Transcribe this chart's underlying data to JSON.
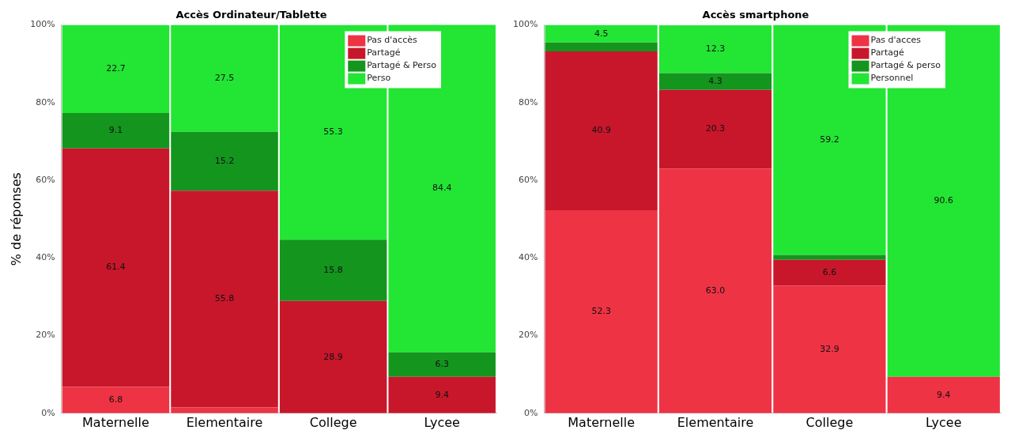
{
  "chart_data": [
    {
      "type": "bar",
      "title": "Accès Ordinateur/Tablette",
      "ylabel": "% de réponses",
      "categories": [
        "Maternelle",
        "Elementaire",
        "College",
        "Lycee"
      ],
      "stacked": true,
      "ylim": [
        0,
        100
      ],
      "yticks": [
        {
          "value": 0,
          "label": "0%"
        },
        {
          "value": 20,
          "label": "20%"
        },
        {
          "value": 40,
          "label": "40%"
        },
        {
          "value": 60,
          "label": "60%"
        },
        {
          "value": 80,
          "label": "80%"
        },
        {
          "value": 100,
          "label": "100%"
        }
      ],
      "grid": false,
      "legend": "top right",
      "series": [
        {
          "name": "Pas d'accès",
          "color": "#ee3344",
          "values": [
            6.8,
            1.5,
            0,
            0
          ],
          "value_labels": [
            "6.8",
            null,
            null,
            null
          ]
        },
        {
          "name": "Partagé",
          "color": "#c8172b",
          "values": [
            61.4,
            55.8,
            28.9,
            9.4
          ],
          "value_labels": [
            "61.4",
            "55.8",
            "28.9",
            "9.4"
          ]
        },
        {
          "name": "Partagé & Perso",
          "color": "#14951e",
          "values": [
            9.1,
            15.2,
            15.8,
            6.3
          ],
          "value_labels": [
            "9.1",
            "15.2",
            "15.8",
            "6.3"
          ]
        },
        {
          "name": "Perso",
          "color": "#22e633",
          "values": [
            22.7,
            27.5,
            55.3,
            84.4
          ],
          "value_labels": [
            "22.7",
            "27.5",
            "55.3",
            "84.4"
          ]
        }
      ]
    },
    {
      "type": "bar",
      "title": "Accès smartphone",
      "categories": [
        "Maternelle",
        "Elementaire",
        "College",
        "Lycee"
      ],
      "stacked": true,
      "ylim": [
        0,
        100
      ],
      "yticks": [
        {
          "value": 0,
          "label": "0%"
        },
        {
          "value": 20,
          "label": "20%"
        },
        {
          "value": 40,
          "label": "40%"
        },
        {
          "value": 60,
          "label": "60%"
        },
        {
          "value": 80,
          "label": "80%"
        },
        {
          "value": 100,
          "label": "100%"
        }
      ],
      "grid": false,
      "legend": "top right",
      "series": [
        {
          "name": "Pas d'acces",
          "color": "#ee3344",
          "values": [
            52.3,
            63.0,
            32.9,
            9.4
          ],
          "value_labels": [
            "52.3",
            "63.0",
            "32.9",
            "9.4"
          ]
        },
        {
          "name": "Partagé",
          "color": "#c8172b",
          "values": [
            40.9,
            20.3,
            6.6,
            0
          ],
          "value_labels": [
            "40.9",
            "20.3",
            "6.6",
            null
          ]
        },
        {
          "name": "Partagé & perso",
          "color": "#14951e",
          "values": [
            2.3,
            4.3,
            1.3,
            0
          ],
          "value_labels": [
            null,
            "4.3",
            null,
            null
          ]
        },
        {
          "name": "Personnel",
          "color": "#22e633",
          "values": [
            4.5,
            12.3,
            59.2,
            90.6
          ],
          "value_labels": [
            "4.5",
            "12.3",
            "59.2",
            "90.6"
          ]
        }
      ]
    }
  ]
}
